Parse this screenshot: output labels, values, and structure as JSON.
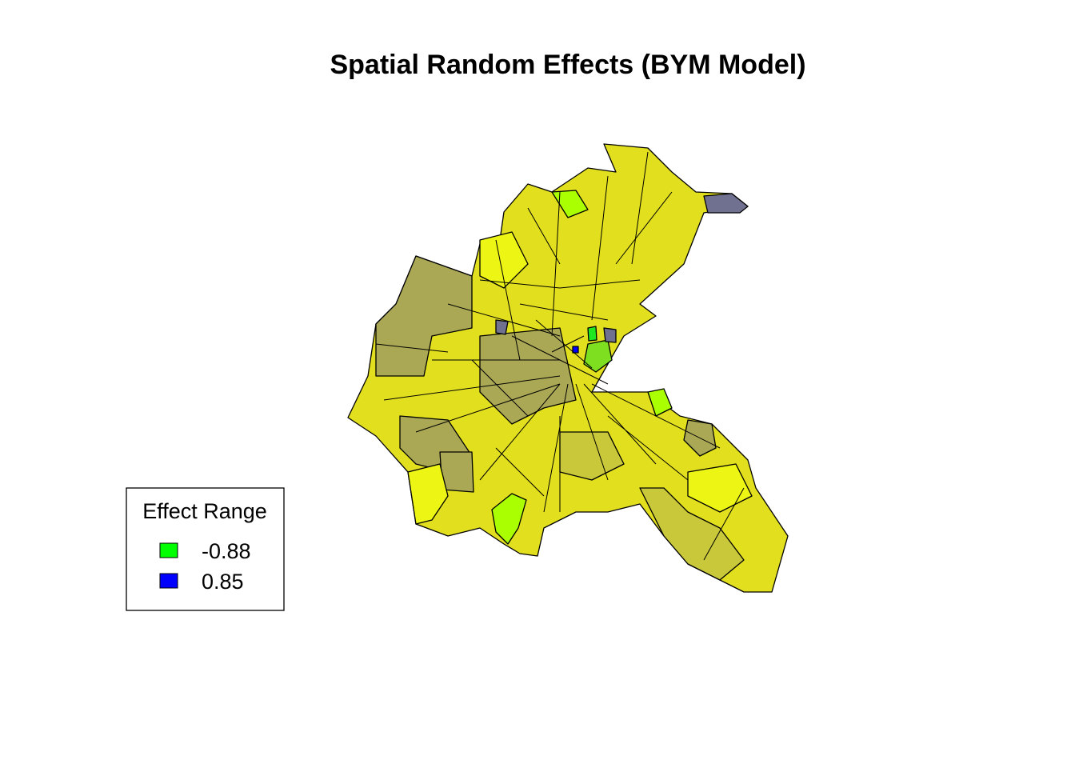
{
  "title": "Spatial Random Effects (BYM Model)",
  "legend": {
    "title": "Effect Range",
    "items": [
      {
        "value": -0.88,
        "color": "#00ff00"
      },
      {
        "value": 0.85,
        "color": "#0000ff"
      }
    ]
  }
}
